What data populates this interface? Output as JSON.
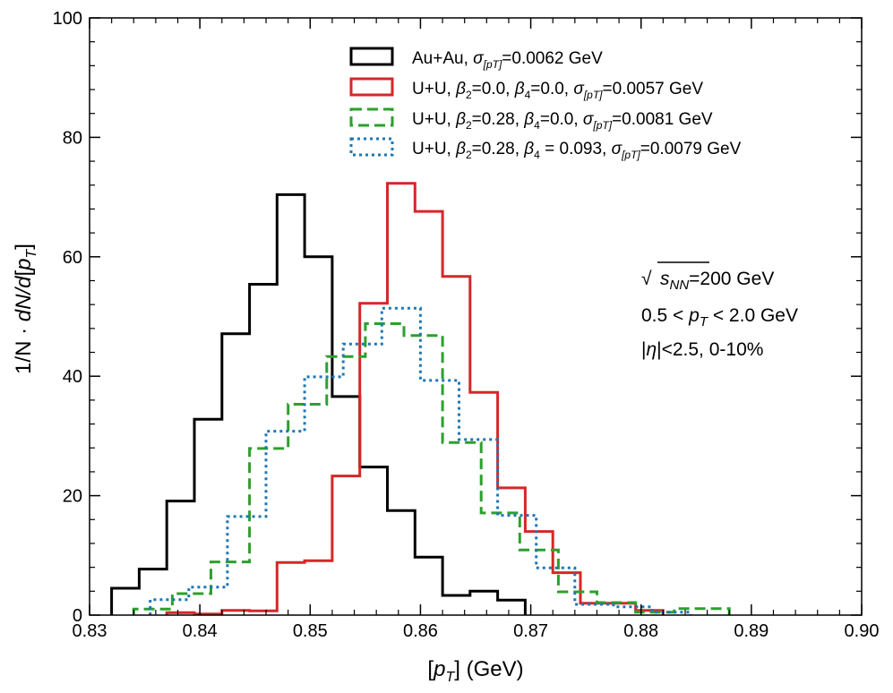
{
  "chart_data": {
    "type": "histogram-step",
    "title": "",
    "xlabel": "[p_T] (GeV)",
    "xlabel_parts": {
      "open": "[",
      "p": "p",
      "sub": "T",
      "close": "] (GeV)"
    },
    "ylabel": "1/N · dN/d[p_T]",
    "ylabel_parts": {
      "pre": "1/N · ",
      "dn": "dN/d",
      "open": "[",
      "p": "p",
      "sub": "T",
      "close": "]"
    },
    "xlim": [
      0.83,
      0.9
    ],
    "ylim": [
      0,
      100
    ],
    "x_ticks": [
      0.83,
      0.84,
      0.85,
      0.86,
      0.87,
      0.88,
      0.89,
      0.9
    ],
    "x_tick_labels": [
      "0.83",
      "0.84",
      "0.85",
      "0.86",
      "0.87",
      "0.88",
      "0.89",
      "0.90"
    ],
    "y_ticks": [
      0,
      20,
      40,
      60,
      80,
      100
    ],
    "y_tick_labels": [
      "0",
      "20",
      "40",
      "60",
      "80",
      "100"
    ],
    "bin_width": 0.0025,
    "series": [
      {
        "name": "Au+Au, σ[pT]=0.0062 GeV",
        "legend": {
          "prefix": "Au+Au, ",
          "sigma": "σ",
          "sigma_sub": "[pT]",
          "value": "=0.0062 GeV"
        },
        "color": "#000000",
        "dash": "",
        "edges": [
          0.832,
          0.8345,
          0.837,
          0.8395,
          0.842,
          0.8445,
          0.847,
          0.8495,
          0.852,
          0.8545,
          0.857,
          0.8595,
          0.862,
          0.8645,
          0.867,
          0.8695
        ],
        "values": [
          4.5,
          7.7,
          19.1,
          32.8,
          47.1,
          55.4,
          70.4,
          60.0,
          36.6,
          24.8,
          17.5,
          9.7,
          3.3,
          4.0,
          2.5
        ]
      },
      {
        "name": "U+U, β2=0.0, β4=0.0, σ[pT]=0.0057 GeV",
        "legend": {
          "prefix": "U+U, ",
          "b2": "β",
          "b2_sub": "2",
          "b2_val": "=0.0, ",
          "b4": "β",
          "b4_sub": "4",
          "b4_val": "=0.0, ",
          "sigma": "σ",
          "sigma_sub": "[pT]",
          "value": "=0.0057 GeV"
        },
        "color": "#d62728",
        "dash": "",
        "edges": [
          0.837,
          0.8395,
          0.842,
          0.8445,
          0.847,
          0.8495,
          0.852,
          0.8545,
          0.857,
          0.8595,
          0.862,
          0.8645,
          0.867,
          0.8695,
          0.872,
          0.8745,
          0.877,
          0.8795,
          0.882
        ],
        "values": [
          0.4,
          0.2,
          0.8,
          0.7,
          8.8,
          9.1,
          23.3,
          52.2,
          72.3,
          67.6,
          56.7,
          37.3,
          21.3,
          14.0,
          7.1,
          2.0,
          2.0,
          0.8
        ]
      },
      {
        "name": "U+U, β2=0.28, β4=0.0, σ[pT]=0.0081 GeV",
        "legend": {
          "prefix": "U+U, ",
          "b2": "β",
          "b2_sub": "2",
          "b2_val": "=0.28, ",
          "b4": "β",
          "b4_sub": "4",
          "b4_val": "=0.0, ",
          "sigma": "σ",
          "sigma_sub": "[pT]",
          "value": "=0.0081 GeV"
        },
        "color": "#2ca02c",
        "dash": "12 6",
        "edges": [
          0.834,
          0.8375,
          0.841,
          0.8445,
          0.848,
          0.8515,
          0.855,
          0.8585,
          0.862,
          0.8655,
          0.869,
          0.8725,
          0.876,
          0.8795,
          0.883,
          0.888
        ],
        "values": [
          1.0,
          3.6,
          8.9,
          27.9,
          35.3,
          43.3,
          48.8,
          46.8,
          28.9,
          17.1,
          10.9,
          3.9,
          2.1,
          0.5,
          1.1
        ]
      },
      {
        "name": "U+U, β2=0.28, β4 = 0.093, σ[pT]=0.0079 GeV",
        "legend": {
          "prefix": "U+U, ",
          "b2": "β",
          "b2_sub": "2",
          "b2_val": "=0.28, ",
          "b4": "β",
          "b4_sub": "4",
          "b4_val": " = 0.093, ",
          "sigma": "σ",
          "sigma_sub": "[pT]",
          "value": "=0.0079 GeV"
        },
        "color": "#1f77b4",
        "dash": "3 4",
        "edges": [
          0.8355,
          0.839,
          0.8425,
          0.846,
          0.8495,
          0.853,
          0.8565,
          0.86,
          0.8635,
          0.867,
          0.8705,
          0.874,
          0.8775,
          0.881,
          0.8845
        ],
        "values": [
          2.6,
          4.7,
          16.5,
          30.8,
          39.9,
          45.4,
          51.4,
          39.3,
          29.4,
          16.7,
          7.9,
          1.8,
          1.4,
          0.5
        ]
      }
    ],
    "annotations": {
      "sqrt": "√",
      "s": "s",
      "s_sub": "NN",
      "energy": "=200 GeV",
      "pt_range_pre": "0.5 < ",
      "pt_p": "p",
      "pt_sub": "T",
      "pt_range_post": " < 2.0 GeV",
      "eta_pre": "|",
      "eta": "η",
      "eta_post": "|<2.5, 0-10%"
    },
    "legend_placement": "top-right"
  }
}
